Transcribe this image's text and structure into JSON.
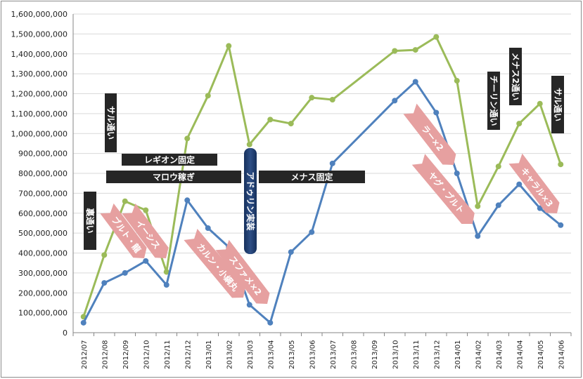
{
  "chart_data": {
    "type": "line",
    "title": "",
    "xlabel": "",
    "ylabel": "",
    "ylim": [
      0,
      1600000000
    ],
    "y_ticks": [
      "0",
      "100,000,000",
      "200,000,000",
      "300,000,000",
      "400,000,000",
      "500,000,000",
      "600,000,000",
      "700,000,000",
      "800,000,000",
      "900,000,000",
      "1,000,000,000",
      "1,100,000,000",
      "1,200,000,000",
      "1,300,000,000",
      "1,400,000,000",
      "1,500,000,000",
      "1,600,000,000"
    ],
    "categories": [
      "2012/07",
      "2012/08",
      "2012/09",
      "2012/10",
      "2012/11",
      "2012/12",
      "2013/01",
      "2013/02",
      "2013/03",
      "2013/04",
      "2013/05",
      "2013/06",
      "2013/07",
      "2013/08",
      "2013/09",
      "2013/10",
      "2013/11",
      "2013/12",
      "2014/01",
      "2014/02",
      "2014/03",
      "2014/04",
      "2014/05",
      "2014/06"
    ],
    "grid": "horizontal",
    "legend": "none",
    "series": [
      {
        "color": "#9bbb59",
        "values": [
          80000000,
          390000000,
          660000000,
          615000000,
          305000000,
          975000000,
          1190000000,
          1440000000,
          945000000,
          1070000000,
          1050000000,
          1180000000,
          1170000000,
          null,
          null,
          1415000000,
          1420000000,
          1485000000,
          1265000000,
          635000000,
          835000000,
          1050000000,
          1150000000,
          845000000
        ]
      },
      {
        "color": "#4f81bd",
        "values": [
          50000000,
          250000000,
          300000000,
          360000000,
          240000000,
          665000000,
          525000000,
          430000000,
          140000000,
          50000000,
          405000000,
          505000000,
          850000000,
          null,
          null,
          1165000000,
          1260000000,
          1105000000,
          800000000,
          485000000,
          640000000,
          745000000,
          625000000,
          540000000
        ]
      }
    ],
    "annotations": [
      {
        "text": "裏通い",
        "style": "dark-box",
        "orientation": "vertical"
      },
      {
        "text": "サル通い",
        "style": "dark-box",
        "orientation": "vertical"
      },
      {
        "text": "レギオン固定",
        "style": "dark-box",
        "orientation": "horizontal"
      },
      {
        "text": "マロウ稼ぎ",
        "style": "dark-box",
        "orientation": "horizontal"
      },
      {
        "text": "アドゥリン実装",
        "style": "navy-pill",
        "orientation": "vertical"
      },
      {
        "text": "メナス固定",
        "style": "dark-box",
        "orientation": "horizontal"
      },
      {
        "text": "チーリン通い",
        "style": "dark-box",
        "orientation": "vertical"
      },
      {
        "text": "メナス2通い",
        "style": "dark-box",
        "orientation": "vertical"
      },
      {
        "text": "サル通い",
        "style": "dark-box",
        "orientation": "vertical"
      },
      {
        "text": "ブルト・龍",
        "style": "pink-arrow"
      },
      {
        "text": "イーシス",
        "style": "pink-arrow"
      },
      {
        "text": "カルン・小綱丸",
        "style": "pink-arrow"
      },
      {
        "text": "スファメ×2",
        "style": "pink-arrow"
      },
      {
        "text": "ラー×2",
        "style": "pink-arrow"
      },
      {
        "text": "ヤグ・ブルト",
        "style": "pink-arrow"
      },
      {
        "text": "キャラル×3",
        "style": "pink-arrow"
      }
    ],
    "colors": {
      "dark_box": "#262626",
      "navy_pill": "#1f3864",
      "pink_arrow": "#e6a0a0",
      "grid": "#d9d9d9",
      "axis": "#868686"
    }
  }
}
